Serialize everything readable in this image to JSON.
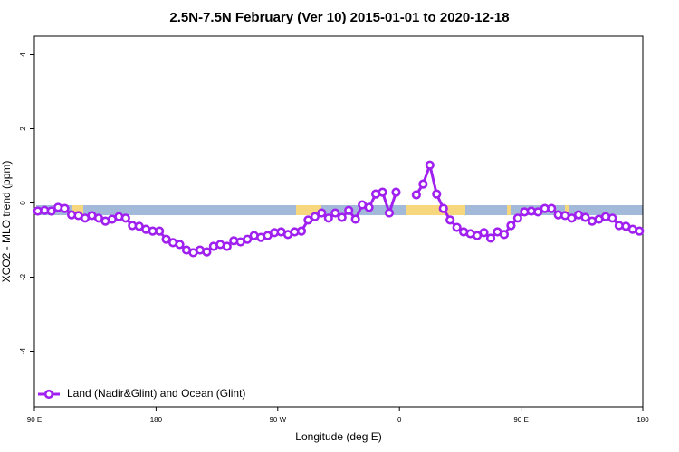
{
  "chart_data": {
    "type": "line",
    "title": "2.5N-7.5N February (Ver 10)   2015-01-01 to 2020-12-18",
    "x_label": "Longitude (deg E)",
    "y_label": "XCO2 - MLO trend (ppm)",
    "xlim": [
      90,
      540
    ],
    "xticks": [
      {
        "value": 90,
        "label": "90 E"
      },
      180,
      {
        "value": 270,
        "label": "90 W"
      },
      {
        "value": 360,
        "label": "0"
      },
      {
        "value": 450,
        "label": "90 E"
      },
      {
        "value": 540,
        "label": "180"
      }
    ],
    "ylim": [
      -5.5,
      4.5
    ],
    "yticks": [
      -4,
      -2,
      0,
      2,
      4
    ],
    "legend": "bottom-left",
    "x": [
      92.5,
      97.5,
      102.5,
      107.5,
      112.5,
      117.5,
      122.5,
      127.5,
      132.5,
      137.5,
      142.5,
      147.5,
      152.5,
      157.5,
      162.5,
      167.5,
      172.5,
      177.5,
      182.5,
      187.5,
      192.5,
      197.5,
      202.5,
      207.5,
      212.5,
      217.5,
      222.5,
      227.5,
      232.5,
      237.5,
      242.5,
      247.5,
      252.5,
      257.5,
      262.5,
      267.5,
      272.5,
      277.5,
      282.5,
      287.5,
      292.5,
      297.5,
      302.5,
      307.5,
      312.5,
      317.5,
      322.5,
      327.5,
      332.5,
      337.5,
      342.5,
      347.5,
      352.5,
      357.5,
      362.5,
      367.5,
      372.5,
      377.5,
      382.5,
      387.5,
      392.5,
      397.5,
      402.5,
      407.5,
      412.5,
      417.5,
      422.5,
      427.5,
      432.5,
      437.5,
      442.5,
      447.5,
      452.5,
      457.5,
      462.5,
      467.5,
      472.5,
      477.5,
      482.5,
      487.5,
      492.5,
      497.5,
      502.5,
      507.5,
      512.5,
      517.5,
      522.5,
      527.5,
      532.5,
      537.5
    ],
    "series": [
      {
        "name": "Land (Nadir&Glint) and Ocean (Glint)",
        "color": "#a020f0",
        "values": [
          -0.22,
          -0.2,
          -0.22,
          -0.12,
          -0.15,
          -0.32,
          -0.34,
          -0.41,
          -0.34,
          -0.41,
          -0.49,
          -0.44,
          -0.37,
          -0.41,
          -0.61,
          -0.63,
          -0.71,
          -0.76,
          -0.76,
          -0.98,
          -1.07,
          -1.12,
          -1.27,
          -1.34,
          -1.27,
          -1.32,
          -1.17,
          -1.12,
          -1.17,
          -1.02,
          -1.05,
          -0.98,
          -0.88,
          -0.93,
          -0.88,
          -0.8,
          -0.78,
          -0.85,
          -0.78,
          -0.76,
          -0.46,
          -0.37,
          -0.27,
          -0.41,
          -0.27,
          -0.39,
          -0.2,
          -0.44,
          -0.05,
          -0.12,
          0.24,
          0.29,
          -0.27,
          0.29,
          null,
          null,
          0.22,
          0.51,
          1.02,
          0.24,
          -0.15,
          -0.46,
          -0.66,
          -0.78,
          -0.83,
          -0.88,
          -0.8,
          -0.95,
          -0.78,
          -0.85,
          -0.61,
          -0.41,
          -0.24,
          -0.22,
          -0.24,
          -0.15,
          -0.15,
          -0.32,
          -0.34,
          -0.41,
          -0.32,
          -0.39,
          -0.49,
          -0.44,
          -0.37,
          -0.41,
          -0.61,
          -0.63,
          -0.71,
          -0.76
        ]
      }
    ]
  }
}
